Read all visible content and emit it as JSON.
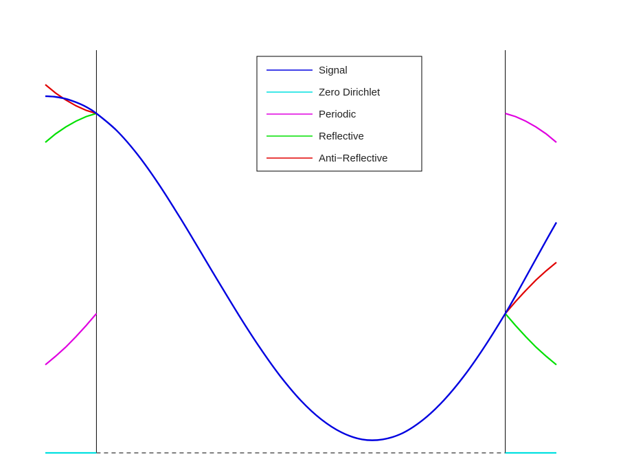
{
  "chart_data": {
    "type": "line",
    "title": "",
    "xlabel": "",
    "ylabel": "",
    "xlim": [
      -0.125,
      1.125
    ],
    "ylim": [
      0,
      1.15
    ],
    "axes_visible": false,
    "grid": false,
    "legend_position": "top-center",
    "legend": [
      "Signal",
      "Zero Dirichlet",
      "Periodic",
      "Reflective",
      "Anti−Reflective"
    ],
    "boundaries": [
      0,
      1
    ],
    "colors": {
      "signal": "#0000e0",
      "zero_dirichlet": "#00e0e0",
      "periodic": "#e000e0",
      "reflective": "#00e000",
      "anti_reflective": "#e00000",
      "boundary_lines": "#000000"
    },
    "signal": {
      "name": "Signal",
      "x": [
        -0.125,
        -0.1,
        -0.075,
        -0.05,
        -0.025,
        0,
        0.05,
        0.1,
        0.15,
        0.2,
        0.25,
        0.3,
        0.35,
        0.4,
        0.45,
        0.5,
        0.55,
        0.6,
        0.65,
        0.7,
        0.75,
        0.8,
        0.85,
        0.9,
        0.95,
        1,
        1.025,
        1.05,
        1.075,
        1.1,
        1.125
      ],
      "y": [
        0.927,
        0.925,
        0.92,
        0.911,
        0.899,
        0.882,
        0.837,
        0.776,
        0.702,
        0.619,
        0.531,
        0.442,
        0.355,
        0.273,
        0.199,
        0.136,
        0.087,
        0.053,
        0.035,
        0.035,
        0.052,
        0.087,
        0.137,
        0.201,
        0.277,
        0.362,
        0.408,
        0.456,
        0.504,
        0.552,
        0.599
      ]
    },
    "zero_dirichlet": {
      "name": "Zero Dirichlet",
      "left": {
        "x": [
          -0.125,
          0
        ],
        "y": [
          0,
          0
        ]
      },
      "right": {
        "x": [
          1,
          1.125
        ],
        "y": [
          0,
          0
        ]
      },
      "inside": {
        "x": [
          0,
          1
        ],
        "y": [
          0,
          0
        ],
        "style": "dashed"
      }
    },
    "periodic": {
      "name": "Periodic",
      "left": {
        "x": [
          -0.125,
          -0.1,
          -0.075,
          -0.05,
          -0.025,
          0
        ],
        "y": [
          0.229,
          0.251,
          0.275,
          0.302,
          0.331,
          0.362
        ]
      },
      "right": {
        "x": [
          1,
          1.025,
          1.05,
          1.075,
          1.1,
          1.125
        ],
        "y": [
          0.882,
          0.874,
          0.862,
          0.847,
          0.829,
          0.807
        ]
      }
    },
    "reflective": {
      "name": "Reflective",
      "left": {
        "x": [
          -0.125,
          -0.1,
          -0.075,
          -0.05,
          -0.025,
          0
        ],
        "y": [
          0.807,
          0.829,
          0.847,
          0.862,
          0.874,
          0.882
        ]
      },
      "right": {
        "x": [
          1,
          1.025,
          1.05,
          1.075,
          1.1,
          1.125
        ],
        "y": [
          0.362,
          0.331,
          0.302,
          0.275,
          0.251,
          0.229
        ]
      }
    },
    "anti_reflective": {
      "name": "Anti−Reflective",
      "left": {
        "x": [
          -0.125,
          -0.1,
          -0.075,
          -0.05,
          -0.025,
          0
        ],
        "y": [
          0.957,
          0.935,
          0.917,
          0.902,
          0.89,
          0.882
        ]
      },
      "right": {
        "x": [
          1,
          1.025,
          1.05,
          1.075,
          1.1,
          1.125
        ],
        "y": [
          0.362,
          0.393,
          0.422,
          0.449,
          0.473,
          0.495
        ]
      }
    }
  }
}
